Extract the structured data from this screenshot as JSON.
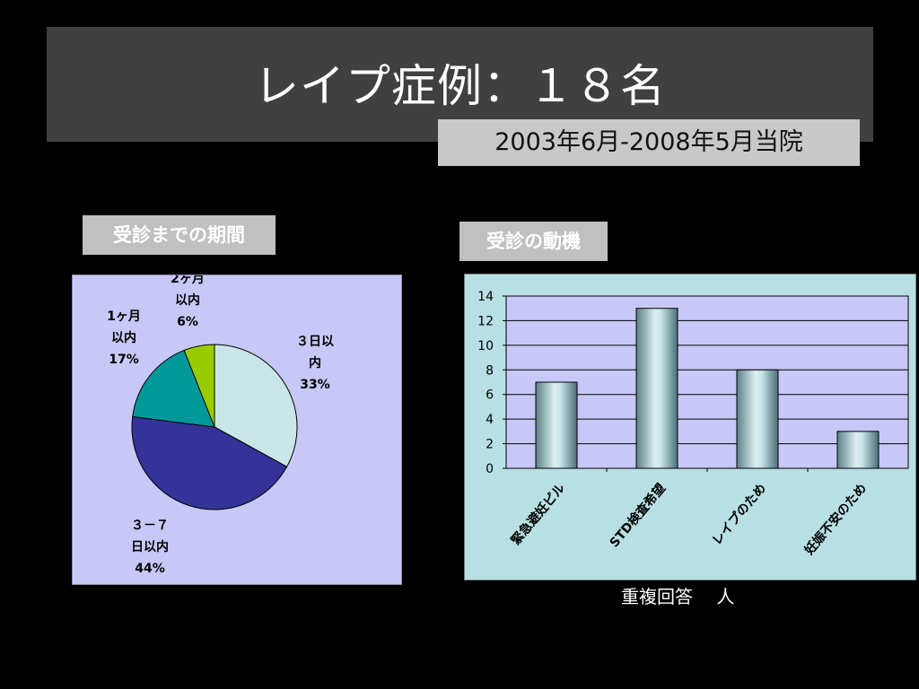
{
  "slide": {
    "title": "レイプ症例：１８名",
    "period": "2003年6月-2008年5月当院",
    "footnote": "重複回答　 人"
  },
  "colors": {
    "background": "#000000",
    "title_bar": "#404040",
    "pie_panel_bg": "#c8c8f8",
    "bar_panel_bg": "#b8e0e4",
    "bar_plot_bg": "#c8c8f8"
  },
  "chart_data": [
    {
      "type": "pie",
      "title": "受診までの期間",
      "slices": [
        {
          "label_lines": [
            "３日以",
            "内"
          ],
          "percent_label": "33%",
          "value": 33,
          "color": "#c8e6e6"
        },
        {
          "label_lines": [
            "３－７",
            "日以内"
          ],
          "percent_label": "44%",
          "value": 44,
          "color": "#33339a"
        },
        {
          "label_lines": [
            "1ヶ月",
            "以内"
          ],
          "percent_label": "17%",
          "value": 17,
          "color": "#009999"
        },
        {
          "label_lines": [
            "2ヶ月",
            "以内"
          ],
          "percent_label": "6%",
          "value": 6,
          "color": "#99cc00"
        }
      ]
    },
    {
      "type": "bar",
      "title": "受診の動機",
      "categories": [
        "緊急避妊ピル",
        "STD検査希望",
        "レイプのため",
        "妊娠不安のため"
      ],
      "values": [
        7,
        13,
        8,
        3
      ],
      "ylim": [
        0,
        14
      ],
      "yticks": [
        "0",
        "2",
        "4",
        "6",
        "8",
        "10",
        "12",
        "14"
      ],
      "grid": true,
      "bar_style": "gradient teal-grey cylinder"
    }
  ]
}
